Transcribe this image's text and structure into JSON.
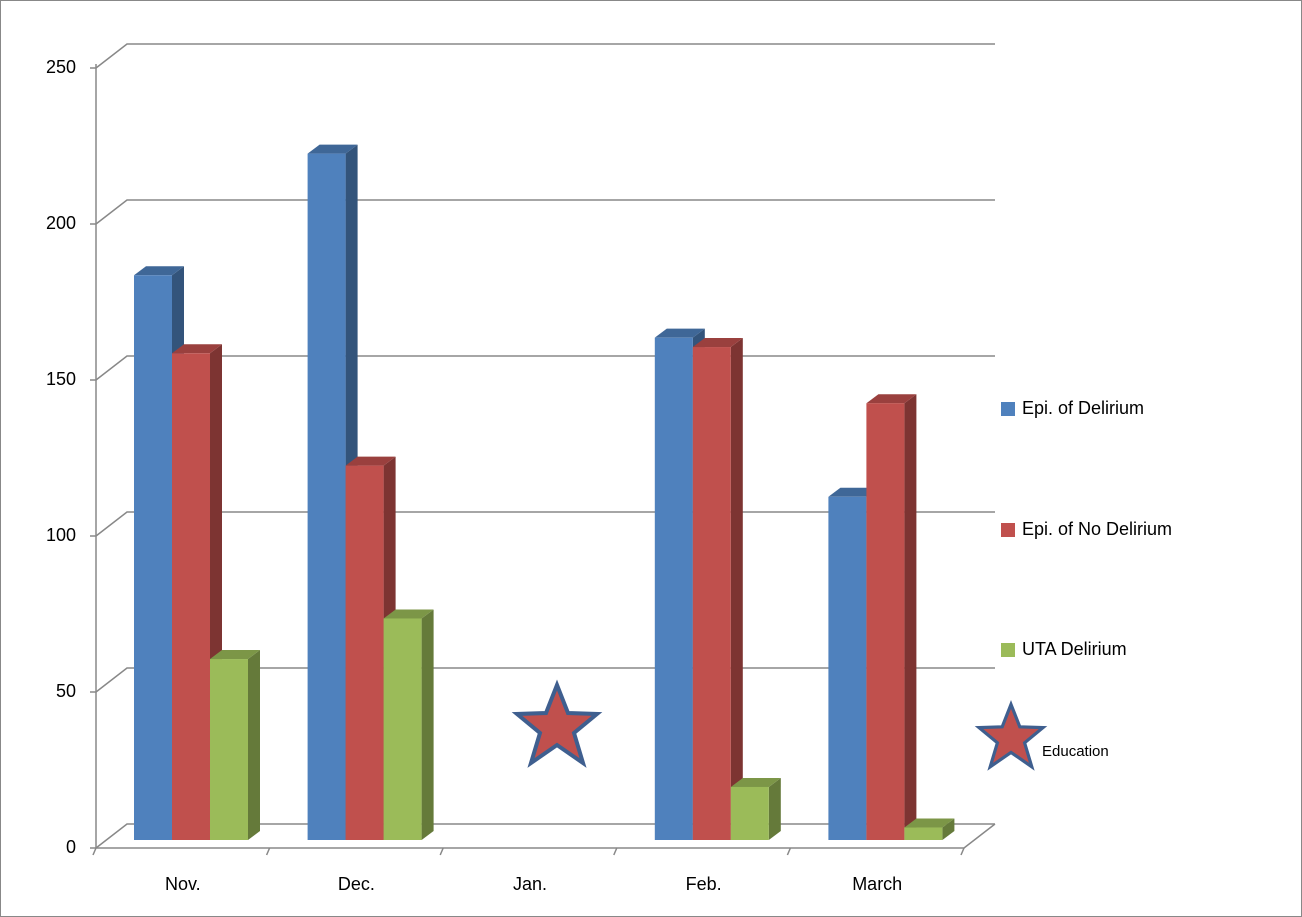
{
  "chart_data": {
    "type": "bar3d",
    "categories": [
      "Nov.",
      "Dec.",
      "Jan.",
      "Feb.",
      "March"
    ],
    "series": [
      {
        "name": "Epi. of Delirium",
        "color": "#4f81bd",
        "values": [
          181,
          220,
          null,
          161,
          110
        ]
      },
      {
        "name": "Epi. of No Delirium",
        "color": "#c0504d",
        "values": [
          156,
          120,
          null,
          158,
          140
        ]
      },
      {
        "name": "UTA  Delirium",
        "color": "#9bbb59",
        "values": [
          58,
          71,
          null,
          17,
          4
        ]
      }
    ],
    "ylim": [
      0,
      250
    ],
    "yticks": [
      0,
      50,
      100,
      150,
      200,
      250
    ],
    "grid": true,
    "legend": "right",
    "annotations": [
      {
        "text": "Education"
      }
    ]
  }
}
